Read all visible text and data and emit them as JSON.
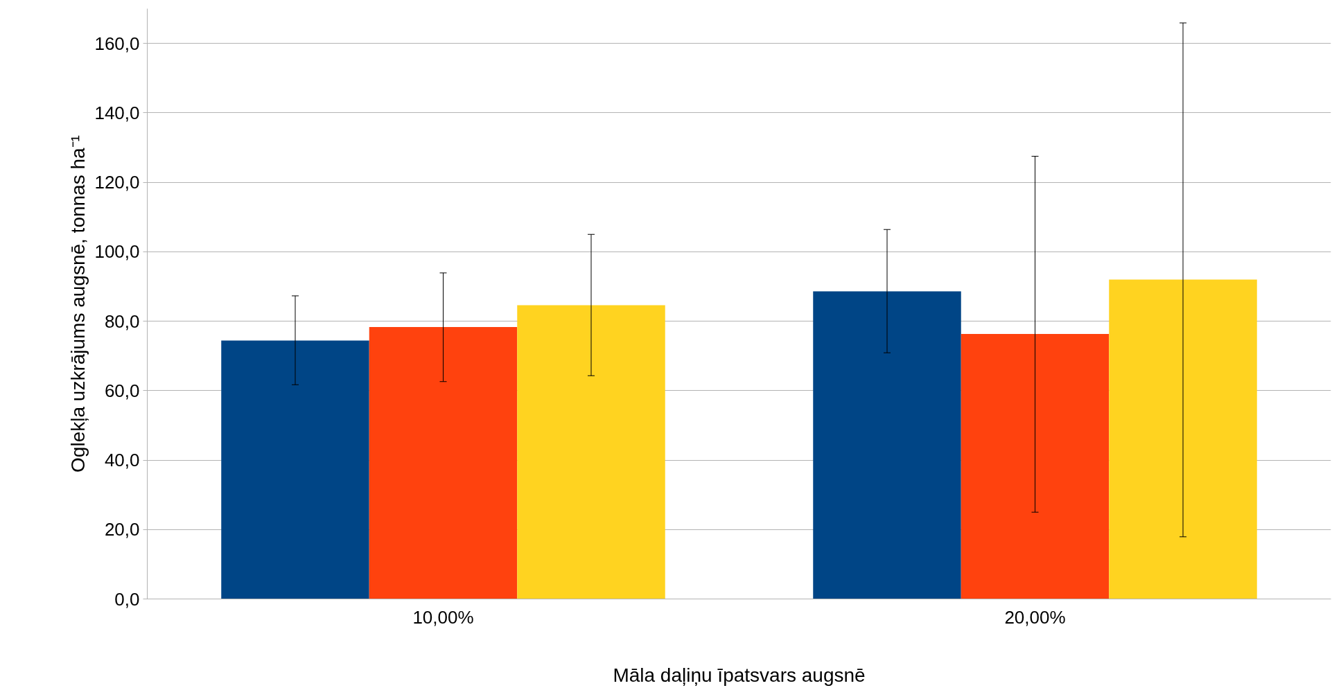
{
  "chart_data": {
    "type": "bar",
    "xlabel": "Māla daļiņu īpatsvars augsnē",
    "ylabel": "Oglekļa uzkrājums augsnē, tonnas ha⁻¹",
    "categories": [
      "10,00%",
      "20,00%"
    ],
    "series": [
      {
        "color": "#004586",
        "values": [
          74.4,
          88.6
        ],
        "errors": [
          [
            61.7,
            87.3
          ],
          [
            70.9,
            106.4
          ]
        ]
      },
      {
        "color": "#ff420e",
        "values": [
          78.3,
          76.3
        ],
        "errors": [
          [
            62.6,
            93.9
          ],
          [
            25.0,
            127.5
          ]
        ]
      },
      {
        "color": "#ffd320",
        "values": [
          84.6,
          92.0
        ],
        "errors": [
          [
            64.3,
            105.0
          ],
          [
            17.9,
            165.9
          ]
        ]
      }
    ],
    "ylim": [
      0,
      170
    ],
    "yticks": [
      {
        "value": 0,
        "label": "0,0"
      },
      {
        "value": 20,
        "label": "20,0"
      },
      {
        "value": 40,
        "label": "40,0"
      },
      {
        "value": 60,
        "label": "60,0"
      },
      {
        "value": 80,
        "label": "80,0"
      },
      {
        "value": 100,
        "label": "100,0"
      },
      {
        "value": 120,
        "label": "120,0"
      },
      {
        "value": 140,
        "label": "140,0"
      },
      {
        "value": 160,
        "label": "160,0"
      }
    ],
    "grid": "y"
  }
}
